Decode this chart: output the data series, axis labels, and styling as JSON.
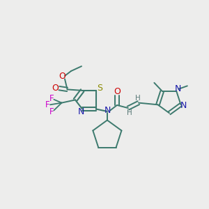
{
  "background_color": "#ededec",
  "fig_width": 3.0,
  "fig_height": 3.0,
  "dpi": 100,
  "title": "",
  "xlim": [
    0.0,
    1.0
  ],
  "ylim": [
    0.0,
    1.0
  ],
  "teal": "#3d7a6e",
  "blue": "#1a1aaa",
  "red": "#cc0000",
  "magenta": "#cc00cc",
  "yellow_green": "#8a8a00",
  "gray": "#5a7a78"
}
